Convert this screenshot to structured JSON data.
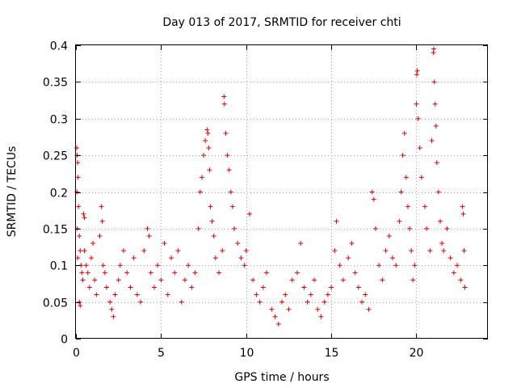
{
  "chart_data": {
    "type": "scatter",
    "title": "Day 013 of 2017, SRMTID for receiver chti",
    "xlabel": "GPS time / hours",
    "ylabel": "SRMTID / TECUs",
    "xlim": [
      0,
      24.2
    ],
    "ylim": [
      0,
      0.4
    ],
    "xticks": [
      0,
      5,
      10,
      15,
      20
    ],
    "xtick_labels": [
      "0",
      "5",
      "10",
      "15",
      "20"
    ],
    "yticks": [
      0,
      0.05,
      0.1,
      0.15,
      0.2,
      0.25,
      0.3,
      0.35,
      0.4
    ],
    "ytick_labels": [
      "0",
      "0.05",
      "0.1",
      "0.15",
      "0.2",
      "0.25",
      "0.3",
      "0.35",
      "0.4"
    ],
    "grid": true,
    "marker": "plus",
    "color": "#e00000",
    "series": [
      {
        "points": [
          [
            0.05,
            0.26
          ],
          [
            0.07,
            0.25
          ],
          [
            0.1,
            0.24
          ],
          [
            0.12,
            0.22
          ],
          [
            0.06,
            0.2
          ],
          [
            0.15,
            0.18
          ],
          [
            0.08,
            0.15
          ],
          [
            0.2,
            0.14
          ],
          [
            0.25,
            0.12
          ],
          [
            0.1,
            0.11
          ],
          [
            0.3,
            0.1
          ],
          [
            0.35,
            0.09
          ],
          [
            0.4,
            0.08
          ],
          [
            0.45,
            0.17
          ],
          [
            0.5,
            0.165
          ],
          [
            0.2,
            0.05
          ],
          [
            0.25,
            0.045
          ],
          [
            0.5,
            0.12
          ],
          [
            0.6,
            0.1
          ],
          [
            0.7,
            0.09
          ],
          [
            0.8,
            0.07
          ],
          [
            0.9,
            0.11
          ],
          [
            1.0,
            0.13
          ],
          [
            1.1,
            0.08
          ],
          [
            1.2,
            0.06
          ],
          [
            1.4,
            0.14
          ],
          [
            1.5,
            0.18
          ],
          [
            1.55,
            0.16
          ],
          [
            1.6,
            0.1
          ],
          [
            1.7,
            0.09
          ],
          [
            1.8,
            0.07
          ],
          [
            2.0,
            0.05
          ],
          [
            2.1,
            0.04
          ],
          [
            2.2,
            0.03
          ],
          [
            2.3,
            0.06
          ],
          [
            2.5,
            0.08
          ],
          [
            2.6,
            0.1
          ],
          [
            2.8,
            0.12
          ],
          [
            3.0,
            0.09
          ],
          [
            3.2,
            0.07
          ],
          [
            3.4,
            0.11
          ],
          [
            3.6,
            0.06
          ],
          [
            3.8,
            0.05
          ],
          [
            4.0,
            0.12
          ],
          [
            4.2,
            0.15
          ],
          [
            4.3,
            0.14
          ],
          [
            4.4,
            0.09
          ],
          [
            4.6,
            0.07
          ],
          [
            4.8,
            0.1
          ],
          [
            5.0,
            0.08
          ],
          [
            5.2,
            0.13
          ],
          [
            5.4,
            0.06
          ],
          [
            5.6,
            0.11
          ],
          [
            5.8,
            0.09
          ],
          [
            6.0,
            0.12
          ],
          [
            6.2,
            0.05
          ],
          [
            6.4,
            0.08
          ],
          [
            6.6,
            0.1
          ],
          [
            6.8,
            0.07
          ],
          [
            7.0,
            0.09
          ],
          [
            7.2,
            0.15
          ],
          [
            7.3,
            0.2
          ],
          [
            7.4,
            0.22
          ],
          [
            7.5,
            0.25
          ],
          [
            7.6,
            0.27
          ],
          [
            7.7,
            0.285
          ],
          [
            7.75,
            0.28
          ],
          [
            7.8,
            0.26
          ],
          [
            7.85,
            0.23
          ],
          [
            7.9,
            0.18
          ],
          [
            8.0,
            0.16
          ],
          [
            8.1,
            0.14
          ],
          [
            8.2,
            0.11
          ],
          [
            8.4,
            0.09
          ],
          [
            8.6,
            0.12
          ],
          [
            8.7,
            0.33
          ],
          [
            8.72,
            0.32
          ],
          [
            8.8,
            0.28
          ],
          [
            8.9,
            0.25
          ],
          [
            9.0,
            0.23
          ],
          [
            9.1,
            0.2
          ],
          [
            9.2,
            0.18
          ],
          [
            9.3,
            0.15
          ],
          [
            9.5,
            0.13
          ],
          [
            9.7,
            0.11
          ],
          [
            9.9,
            0.1
          ],
          [
            10.0,
            0.12
          ],
          [
            10.2,
            0.17
          ],
          [
            10.4,
            0.08
          ],
          [
            10.6,
            0.06
          ],
          [
            10.8,
            0.05
          ],
          [
            11.0,
            0.07
          ],
          [
            11.2,
            0.09
          ],
          [
            11.5,
            0.04
          ],
          [
            11.7,
            0.03
          ],
          [
            11.9,
            0.02
          ],
          [
            12.1,
            0.05
          ],
          [
            12.3,
            0.06
          ],
          [
            12.5,
            0.04
          ],
          [
            12.7,
            0.08
          ],
          [
            13.0,
            0.09
          ],
          [
            13.2,
            0.13
          ],
          [
            13.4,
            0.07
          ],
          [
            13.6,
            0.05
          ],
          [
            13.8,
            0.06
          ],
          [
            14.0,
            0.08
          ],
          [
            14.2,
            0.04
          ],
          [
            14.4,
            0.03
          ],
          [
            14.6,
            0.05
          ],
          [
            14.8,
            0.06
          ],
          [
            15.0,
            0.07
          ],
          [
            15.2,
            0.12
          ],
          [
            15.3,
            0.16
          ],
          [
            15.5,
            0.1
          ],
          [
            15.7,
            0.08
          ],
          [
            16.0,
            0.11
          ],
          [
            16.2,
            0.13
          ],
          [
            16.4,
            0.09
          ],
          [
            16.6,
            0.07
          ],
          [
            16.8,
            0.05
          ],
          [
            17.0,
            0.06
          ],
          [
            17.2,
            0.04
          ],
          [
            17.4,
            0.2
          ],
          [
            17.5,
            0.19
          ],
          [
            17.6,
            0.15
          ],
          [
            17.8,
            0.1
          ],
          [
            18.0,
            0.08
          ],
          [
            18.2,
            0.12
          ],
          [
            18.4,
            0.14
          ],
          [
            18.6,
            0.11
          ],
          [
            18.8,
            0.1
          ],
          [
            19.0,
            0.16
          ],
          [
            19.1,
            0.2
          ],
          [
            19.2,
            0.25
          ],
          [
            19.3,
            0.28
          ],
          [
            19.4,
            0.22
          ],
          [
            19.5,
            0.18
          ],
          [
            19.6,
            0.15
          ],
          [
            19.7,
            0.12
          ],
          [
            19.8,
            0.08
          ],
          [
            19.9,
            0.1
          ],
          [
            20.0,
            0.32
          ],
          [
            20.02,
            0.36
          ],
          [
            20.05,
            0.365
          ],
          [
            20.1,
            0.3
          ],
          [
            20.2,
            0.26
          ],
          [
            20.3,
            0.22
          ],
          [
            20.5,
            0.18
          ],
          [
            20.6,
            0.15
          ],
          [
            20.8,
            0.12
          ],
          [
            20.9,
            0.27
          ],
          [
            21.0,
            0.39
          ],
          [
            21.02,
            0.395
          ],
          [
            21.05,
            0.35
          ],
          [
            21.1,
            0.32
          ],
          [
            21.15,
            0.29
          ],
          [
            21.2,
            0.24
          ],
          [
            21.3,
            0.2
          ],
          [
            21.4,
            0.16
          ],
          [
            21.5,
            0.13
          ],
          [
            21.6,
            0.12
          ],
          [
            21.8,
            0.15
          ],
          [
            22.0,
            0.11
          ],
          [
            22.2,
            0.09
          ],
          [
            22.4,
            0.1
          ],
          [
            22.6,
            0.08
          ],
          [
            22.7,
            0.18
          ],
          [
            22.75,
            0.17
          ],
          [
            22.8,
            0.12
          ],
          [
            22.85,
            0.07
          ]
        ]
      }
    ]
  }
}
